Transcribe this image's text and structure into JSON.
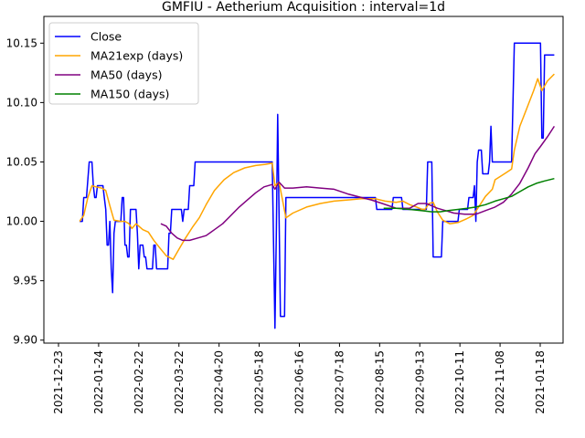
{
  "chart_data": {
    "type": "line",
    "title": "GMFIU - Aetherium Acquisition : interval=1d",
    "xlabel": "",
    "ylabel": "",
    "x_ticks": [
      "2021-12-23",
      "2022-01-24",
      "2022-02-22",
      "2022-03-22",
      "2022-04-20",
      "2022-05-18",
      "2022-06-16",
      "2022-07-18",
      "2022-08-15",
      "2022-09-13",
      "2022-10-11",
      "2022-11-08",
      "2021-01-18"
    ],
    "y_ticks": [
      "9.90",
      "9.95",
      "10.00",
      "10.05",
      "10.10",
      "10.15"
    ],
    "xlim": [
      0,
      380
    ],
    "ylim": [
      9.8975,
      10.1725
    ],
    "legend_position": "upper-left",
    "grid": false,
    "series": [
      {
        "name": "Close",
        "color": "#0000ff",
        "points": [
          [
            10,
            10.0
          ],
          [
            12,
            10.0
          ],
          [
            13,
            10.02
          ],
          [
            15,
            10.02
          ],
          [
            17,
            10.05
          ],
          [
            19,
            10.05
          ],
          [
            20,
            10.03
          ],
          [
            21,
            10.02
          ],
          [
            22,
            10.02
          ],
          [
            23,
            10.03
          ],
          [
            27,
            10.03
          ],
          [
            28,
            10.02
          ],
          [
            29,
            10.01
          ],
          [
            30,
            9.98
          ],
          [
            31,
            9.98
          ],
          [
            32,
            10.0
          ],
          [
            33,
            9.96
          ],
          [
            34,
            9.94
          ],
          [
            35,
            9.99
          ],
          [
            36,
            10.0
          ],
          [
            37,
            10.0
          ],
          [
            40,
            10.0
          ],
          [
            41,
            10.02
          ],
          [
            42,
            10.02
          ],
          [
            43,
            9.98
          ],
          [
            44,
            9.98
          ],
          [
            45,
            9.97
          ],
          [
            46,
            9.97
          ],
          [
            47,
            10.01
          ],
          [
            48,
            10.01
          ],
          [
            51,
            10.01
          ],
          [
            52,
            9.99
          ],
          [
            53,
            9.96
          ],
          [
            54,
            9.98
          ],
          [
            56,
            9.98
          ],
          [
            57,
            9.97
          ],
          [
            58,
            9.97
          ],
          [
            59,
            9.96
          ],
          [
            61,
            9.96
          ],
          [
            63,
            9.96
          ],
          [
            64,
            9.98
          ],
          [
            65,
            9.98
          ],
          [
            66,
            9.96
          ],
          [
            71,
            9.96
          ],
          [
            74,
            9.96
          ],
          [
            75,
            9.99
          ],
          [
            76,
            9.99
          ],
          [
            77,
            10.01
          ],
          [
            84,
            10.01
          ],
          [
            85,
            10.0
          ],
          [
            86,
            10.01
          ],
          [
            89,
            10.01
          ],
          [
            90,
            10.03
          ],
          [
            93,
            10.03
          ],
          [
            94,
            10.05
          ],
          [
            150,
            10.05
          ],
          [
            152,
            9.91
          ],
          [
            153,
            9.99
          ],
          [
            154,
            10.09
          ],
          [
            156,
            9.92
          ],
          [
            159,
            9.92
          ],
          [
            160,
            10.02
          ],
          [
            225,
            10.02
          ],
          [
            226,
            10.01
          ],
          [
            237,
            10.01
          ],
          [
            238,
            10.02
          ],
          [
            244,
            10.02
          ],
          [
            245,
            10.01
          ],
          [
            262,
            10.01
          ],
          [
            263,
            10.05
          ],
          [
            266,
            10.05
          ],
          [
            267,
            9.97
          ],
          [
            273,
            9.97
          ],
          [
            274,
            10.0
          ],
          [
            285,
            10.0
          ],
          [
            286,
            10.01
          ],
          [
            292,
            10.01
          ],
          [
            293,
            10.02
          ],
          [
            295,
            10.02
          ],
          [
            296,
            10.02
          ],
          [
            297,
            10.03
          ],
          [
            298,
            10.0
          ],
          [
            299,
            10.05
          ],
          [
            300,
            10.06
          ],
          [
            302,
            10.06
          ],
          [
            303,
            10.04
          ],
          [
            307,
            10.04
          ],
          [
            308,
            10.05
          ],
          [
            309,
            10.08
          ],
          [
            310,
            10.05
          ],
          [
            324,
            10.05
          ],
          [
            326,
            10.15
          ],
          [
            345,
            10.15
          ],
          [
            346,
            10.07
          ],
          [
            347,
            10.07
          ],
          [
            348,
            10.14
          ],
          [
            355,
            10.14
          ]
        ]
      },
      {
        "name": "MA21exp (days)",
        "color": "#ffa500",
        "points": [
          [
            10,
            10.0
          ],
          [
            13,
            10.005
          ],
          [
            16,
            10.02
          ],
          [
            19,
            10.03
          ],
          [
            22,
            10.029
          ],
          [
            26,
            10.028
          ],
          [
            29,
            10.026
          ],
          [
            32,
            10.013
          ],
          [
            35,
            10.001
          ],
          [
            40,
            10.0
          ],
          [
            43,
            10.0
          ],
          [
            46,
            9.998
          ],
          [
            48,
            9.994
          ],
          [
            51,
            9.998
          ],
          [
            53,
            9.996
          ],
          [
            56,
            9.993
          ],
          [
            60,
            9.991
          ],
          [
            64,
            9.984
          ],
          [
            68,
            9.978
          ],
          [
            73,
            9.971
          ],
          [
            78,
            9.968
          ],
          [
            82,
            9.976
          ],
          [
            87,
            9.986
          ],
          [
            92,
            9.995
          ],
          [
            97,
            10.003
          ],
          [
            102,
            10.014
          ],
          [
            108,
            10.026
          ],
          [
            115,
            10.035
          ],
          [
            122,
            10.041
          ],
          [
            130,
            10.045
          ],
          [
            138,
            10.047
          ],
          [
            145,
            10.048
          ],
          [
            150,
            10.049
          ],
          [
            152,
            10.03
          ],
          [
            155,
            10.033
          ],
          [
            158,
            10.015
          ],
          [
            160,
            10.003
          ],
          [
            165,
            10.007
          ],
          [
            175,
            10.012
          ],
          [
            185,
            10.015
          ],
          [
            195,
            10.017
          ],
          [
            205,
            10.018
          ],
          [
            215,
            10.019
          ],
          [
            225,
            10.019
          ],
          [
            232,
            10.017
          ],
          [
            240,
            10.016
          ],
          [
            245,
            10.017
          ],
          [
            250,
            10.014
          ],
          [
            255,
            10.012
          ],
          [
            259,
            10.01
          ],
          [
            261,
            10.01
          ],
          [
            264,
            10.015
          ],
          [
            267,
            10.016
          ],
          [
            270,
            10.008
          ],
          [
            274,
            10.001
          ],
          [
            279,
            9.998
          ],
          [
            285,
            9.999
          ],
          [
            291,
            10.002
          ],
          [
            296,
            10.005
          ],
          [
            300,
            10.012
          ],
          [
            305,
            10.021
          ],
          [
            310,
            10.027
          ],
          [
            312,
            10.035
          ],
          [
            316,
            10.038
          ],
          [
            320,
            10.041
          ],
          [
            324,
            10.044
          ],
          [
            326,
            10.06
          ],
          [
            330,
            10.08
          ],
          [
            335,
            10.095
          ],
          [
            340,
            10.11
          ],
          [
            343,
            10.12
          ],
          [
            346,
            10.11
          ],
          [
            350,
            10.118
          ],
          [
            355,
            10.124
          ]
        ]
      },
      {
        "name": "MA50 (days)",
        "color": "#800080",
        "points": [
          [
            69,
            9.998
          ],
          [
            73,
            9.996
          ],
          [
            77,
            9.99
          ],
          [
            81,
            9.986
          ],
          [
            85,
            9.984
          ],
          [
            90,
            9.984
          ],
          [
            96,
            9.986
          ],
          [
            102,
            9.988
          ],
          [
            108,
            9.993
          ],
          [
            114,
            9.998
          ],
          [
            120,
            10.005
          ],
          [
            126,
            10.012
          ],
          [
            132,
            10.018
          ],
          [
            138,
            10.024
          ],
          [
            144,
            10.029
          ],
          [
            150,
            10.031
          ],
          [
            152,
            10.027
          ],
          [
            155,
            10.033
          ],
          [
            159,
            10.028
          ],
          [
            165,
            10.028
          ],
          [
            175,
            10.029
          ],
          [
            185,
            10.028
          ],
          [
            195,
            10.027
          ],
          [
            205,
            10.023
          ],
          [
            215,
            10.02
          ],
          [
            222,
            10.018
          ],
          [
            230,
            10.015
          ],
          [
            240,
            10.011
          ],
          [
            250,
            10.011
          ],
          [
            256,
            10.015
          ],
          [
            262,
            10.015
          ],
          [
            266,
            10.013
          ],
          [
            270,
            10.011
          ],
          [
            276,
            10.009
          ],
          [
            282,
            10.007
          ],
          [
            290,
            10.006
          ],
          [
            298,
            10.006
          ],
          [
            305,
            10.009
          ],
          [
            312,
            10.012
          ],
          [
            318,
            10.016
          ],
          [
            324,
            10.023
          ],
          [
            330,
            10.032
          ],
          [
            336,
            10.045
          ],
          [
            341,
            10.057
          ],
          [
            345,
            10.063
          ],
          [
            350,
            10.071
          ],
          [
            355,
            10.08
          ]
        ]
      },
      {
        "name": "MA150 (days)",
        "color": "#008000",
        "points": [
          [
            231,
            10.011
          ],
          [
            240,
            10.011
          ],
          [
            250,
            10.01
          ],
          [
            258,
            10.009
          ],
          [
            266,
            10.008
          ],
          [
            272,
            10.008
          ],
          [
            278,
            10.009
          ],
          [
            285,
            10.01
          ],
          [
            292,
            10.011
          ],
          [
            298,
            10.012
          ],
          [
            305,
            10.014
          ],
          [
            312,
            10.017
          ],
          [
            318,
            10.019
          ],
          [
            324,
            10.021
          ],
          [
            330,
            10.025
          ],
          [
            336,
            10.029
          ],
          [
            342,
            10.032
          ],
          [
            348,
            10.034
          ],
          [
            355,
            10.036
          ]
        ]
      }
    ]
  }
}
